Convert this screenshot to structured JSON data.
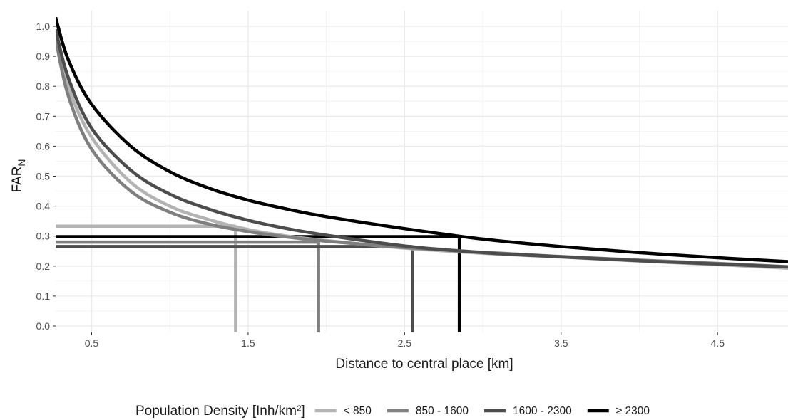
{
  "chart_data": {
    "type": "line",
    "title": "",
    "xlabel": "Distance to central place [km]",
    "ylabel": {
      "main": "FAR",
      "subscript": "N"
    },
    "xlim": [
      0.27,
      4.95
    ],
    "ylim": [
      0.0,
      1.0
    ],
    "x_ticks": [
      0.5,
      1.5,
      2.5,
      3.5,
      4.5
    ],
    "x_tick_labels": [
      "0.5",
      "1.5",
      "2.5",
      "3.5",
      "4.5"
    ],
    "y_ticks": [
      0.0,
      0.1,
      0.2,
      0.3,
      0.4,
      0.5,
      0.6,
      0.7,
      0.8,
      0.9,
      1.0
    ],
    "y_tick_labels": [
      "0.0",
      "0.1",
      "0.2",
      "0.3",
      "0.4",
      "0.5",
      "0.6",
      "0.7",
      "0.8",
      "0.9",
      "1.0"
    ],
    "grid": true,
    "legend": {
      "title": "Population Density [Inh/km²]",
      "position": "bottom"
    },
    "series": [
      {
        "name": "< 850",
        "color": "#b3b3b3",
        "x": [
          0.27,
          0.35,
          0.5,
          0.75,
          1.0,
          1.25,
          1.5,
          1.75,
          2.0,
          2.5,
          3.0,
          3.5,
          4.0,
          4.5,
          4.95
        ],
        "y": [
          0.97,
          0.8,
          0.63,
          0.48,
          0.4,
          0.355,
          0.322,
          0.3,
          0.285,
          0.26,
          0.243,
          0.23,
          0.217,
          0.205,
          0.193
        ],
        "threshold": {
          "x": 1.42,
          "y": 0.333
        }
      },
      {
        "name": "850 - 1600",
        "color": "#7f7f7f",
        "x": [
          0.27,
          0.35,
          0.5,
          0.75,
          1.0,
          1.25,
          1.5,
          1.75,
          2.0,
          2.5,
          3.0,
          3.5,
          4.0,
          4.5,
          4.95
        ],
        "y": [
          0.96,
          0.77,
          0.59,
          0.45,
          0.38,
          0.34,
          0.315,
          0.297,
          0.283,
          0.262,
          0.246,
          0.232,
          0.22,
          0.209,
          0.198
        ],
        "threshold": {
          "x": 1.95,
          "y": 0.28
        }
      },
      {
        "name": "1600 - 2300",
        "color": "#4d4d4d",
        "x": [
          0.27,
          0.35,
          0.5,
          0.75,
          1.0,
          1.25,
          1.5,
          1.75,
          2.0,
          2.5,
          3.0,
          3.5,
          4.0,
          4.5,
          4.95
        ],
        "y": [
          0.99,
          0.83,
          0.66,
          0.52,
          0.44,
          0.39,
          0.353,
          0.325,
          0.303,
          0.267,
          0.245,
          0.231,
          0.218,
          0.207,
          0.197
        ],
        "threshold": {
          "x": 2.55,
          "y": 0.265
        }
      },
      {
        "name": "≥ 2300",
        "color": "#000000",
        "x": [
          0.27,
          0.35,
          0.5,
          0.75,
          1.0,
          1.25,
          1.5,
          1.75,
          2.0,
          2.5,
          3.0,
          3.5,
          4.0,
          4.5,
          4.95
        ],
        "y": [
          1.03,
          0.89,
          0.74,
          0.6,
          0.515,
          0.46,
          0.42,
          0.39,
          0.365,
          0.325,
          0.29,
          0.265,
          0.245,
          0.228,
          0.215
        ],
        "threshold": {
          "x": 2.85,
          "y": 0.298
        }
      }
    ]
  }
}
